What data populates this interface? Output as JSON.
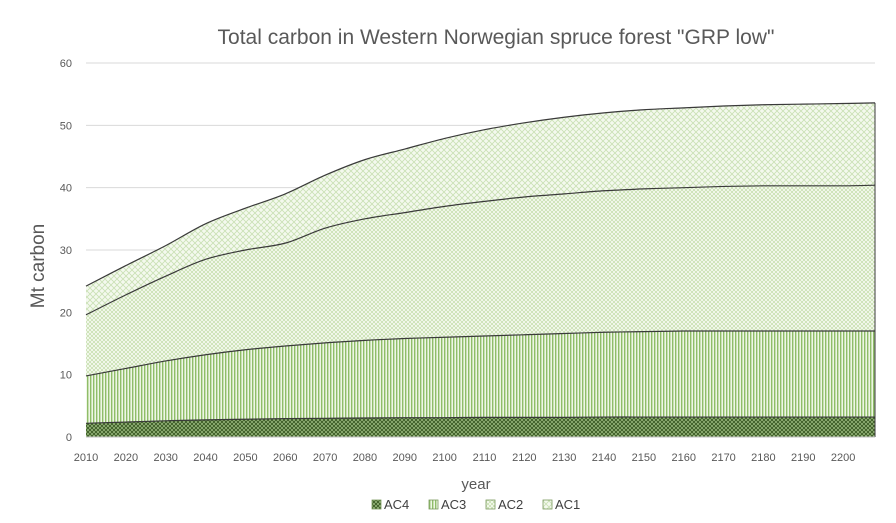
{
  "chart_data": {
    "type": "area",
    "stacked": true,
    "title": "Total carbon in Western Norwegian spruce forest  \"GRP low\"",
    "xlabel": "year",
    "ylabel": "Mt carbon",
    "xlim": [
      2010,
      2208
    ],
    "ylim": [
      0,
      60
    ],
    "yticks": [
      0,
      10,
      20,
      30,
      40,
      50,
      60
    ],
    "xticks": [
      2010,
      2020,
      2030,
      2040,
      2050,
      2060,
      2070,
      2080,
      2090,
      2100,
      2110,
      2120,
      2130,
      2140,
      2150,
      2160,
      2170,
      2180,
      2190,
      2200
    ],
    "grid": true,
    "legend_position": "bottom",
    "x": [
      2010,
      2020,
      2030,
      2040,
      2050,
      2060,
      2070,
      2080,
      2090,
      2100,
      2110,
      2120,
      2130,
      2140,
      2150,
      2160,
      2170,
      2180,
      2190,
      2200,
      2208
    ],
    "series": [
      {
        "name": "AC4",
        "color": "#5e8a3e",
        "pattern": "crosshatch-dark",
        "values": [
          2.2,
          2.4,
          2.6,
          2.75,
          2.85,
          2.95,
          3.0,
          3.05,
          3.1,
          3.1,
          3.15,
          3.15,
          3.15,
          3.2,
          3.2,
          3.2,
          3.2,
          3.2,
          3.2,
          3.2,
          3.2
        ]
      },
      {
        "name": "AC3",
        "color": "#92c06a",
        "pattern": "vertical-stripes",
        "values": [
          7.6,
          8.6,
          9.6,
          10.45,
          11.15,
          11.65,
          12.1,
          12.45,
          12.7,
          12.9,
          13.05,
          13.25,
          13.45,
          13.6,
          13.7,
          13.8,
          13.8,
          13.8,
          13.8,
          13.8,
          13.8
        ]
      },
      {
        "name": "AC2",
        "color": "#c5dfae",
        "pattern": "fine-crosshatch",
        "values": [
          9.8,
          11.8,
          13.6,
          15.3,
          16.0,
          16.5,
          18.4,
          19.5,
          20.2,
          21.0,
          21.6,
          22.1,
          22.4,
          22.7,
          22.9,
          23.0,
          23.2,
          23.3,
          23.3,
          23.3,
          23.4
        ]
      },
      {
        "name": "AC1",
        "color": "#ddeccd",
        "pattern": "diagonal-crosshatch",
        "values": [
          4.6,
          4.7,
          4.9,
          5.7,
          6.7,
          7.9,
          8.5,
          9.5,
          10.2,
          10.9,
          11.5,
          11.9,
          12.3,
          12.5,
          12.7,
          12.8,
          12.9,
          13.0,
          13.1,
          13.2,
          13.2
        ]
      }
    ]
  }
}
